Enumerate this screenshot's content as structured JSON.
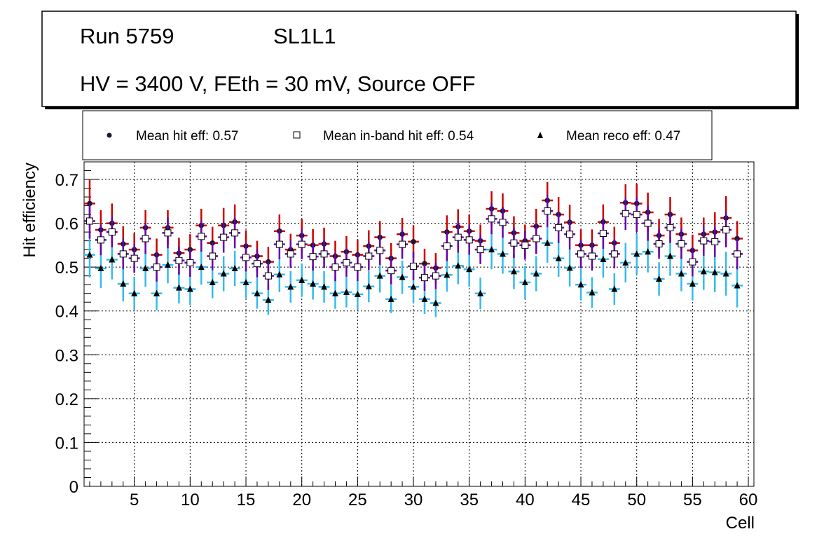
{
  "chart_data": {
    "type": "scatter",
    "title_line1_run": "Run 5759",
    "title_line1_layer": "SL1L1",
    "title_line2": "HV = 3400 V, FEth = 30 mV, Source OFF",
    "xlabel": "Cell",
    "ylabel": "Hit efficiency",
    "xlim": [
      0.5,
      60.5
    ],
    "ylim": [
      0,
      0.74
    ],
    "grid": true,
    "x_ticks": [
      "5",
      "10",
      "15",
      "20",
      "25",
      "30",
      "35",
      "40",
      "45",
      "50",
      "55",
      "60"
    ],
    "y_ticks": [
      "0",
      "0.1",
      "0.2",
      "0.3",
      "0.4",
      "0.5",
      "0.6",
      "0.7"
    ],
    "legend_position": "top",
    "series": [
      {
        "name": "hit",
        "legend": "Mean hit  eff: 0.57",
        "marker": "circle",
        "marker_color": "#1a1a2e",
        "error_color": "#cc0000",
        "x": [
          1,
          2,
          3,
          4,
          5,
          6,
          7,
          8,
          9,
          10,
          11,
          12,
          13,
          14,
          15,
          16,
          17,
          18,
          19,
          20,
          21,
          22,
          23,
          24,
          25,
          26,
          27,
          28,
          29,
          30,
          31,
          32,
          33,
          34,
          35,
          36,
          37,
          38,
          39,
          40,
          41,
          42,
          43,
          44,
          45,
          46,
          47,
          48,
          49,
          50,
          51,
          52,
          53,
          54,
          55,
          56,
          57,
          58,
          59
        ],
        "values": [
          0.645,
          0.585,
          0.6,
          0.553,
          0.54,
          0.59,
          0.528,
          0.59,
          0.532,
          0.54,
          0.595,
          0.555,
          0.595,
          0.603,
          0.548,
          0.525,
          0.512,
          0.582,
          0.54,
          0.572,
          0.55,
          0.553,
          0.525,
          0.535,
          0.528,
          0.548,
          0.568,
          0.52,
          0.575,
          0.558,
          0.508,
          0.498,
          0.58,
          0.592,
          0.582,
          0.56,
          0.633,
          0.628,
          0.578,
          0.56,
          0.593,
          0.652,
          0.62,
          0.602,
          0.55,
          0.55,
          0.603,
          0.555,
          0.647,
          0.645,
          0.625,
          0.572,
          0.62,
          0.575,
          0.538,
          0.575,
          0.58,
          0.612,
          0.565
        ],
        "err": [
          0.055,
          0.045,
          0.045,
          0.04,
          0.038,
          0.04,
          0.037,
          0.04,
          0.035,
          0.035,
          0.038,
          0.037,
          0.04,
          0.04,
          0.036,
          0.035,
          0.034,
          0.038,
          0.036,
          0.038,
          0.037,
          0.037,
          0.035,
          0.036,
          0.035,
          0.036,
          0.037,
          0.035,
          0.037,
          0.037,
          0.034,
          0.034,
          0.038,
          0.04,
          0.038,
          0.037,
          0.04,
          0.04,
          0.038,
          0.037,
          0.04,
          0.042,
          0.04,
          0.04,
          0.036,
          0.036,
          0.04,
          0.037,
          0.042,
          0.045,
          0.045,
          0.038,
          0.04,
          0.038,
          0.036,
          0.038,
          0.045,
          0.05,
          0.04
        ]
      },
      {
        "name": "inband",
        "legend": "Mean in-band hit eff: 0.54",
        "marker": "open-square",
        "marker_color": "#000000",
        "marker_fill": "#ffffff",
        "error_color": "#6600aa",
        "x": [
          1,
          2,
          3,
          4,
          5,
          6,
          7,
          8,
          9,
          10,
          11,
          12,
          13,
          14,
          15,
          16,
          17,
          18,
          19,
          20,
          21,
          22,
          23,
          24,
          25,
          26,
          27,
          28,
          29,
          30,
          31,
          32,
          33,
          34,
          35,
          36,
          37,
          38,
          39,
          40,
          41,
          42,
          43,
          44,
          45,
          46,
          47,
          48,
          49,
          50,
          51,
          52,
          53,
          54,
          55,
          56,
          57,
          58,
          59
        ],
        "values": [
          0.605,
          0.562,
          0.58,
          0.53,
          0.52,
          0.565,
          0.5,
          0.578,
          0.515,
          0.51,
          0.57,
          0.525,
          0.568,
          0.578,
          0.522,
          0.508,
          0.48,
          0.552,
          0.53,
          0.552,
          0.524,
          0.53,
          0.5,
          0.51,
          0.5,
          0.525,
          0.538,
          0.492,
          0.552,
          0.502,
          0.476,
          0.48,
          0.548,
          0.568,
          0.562,
          0.54,
          0.61,
          0.602,
          0.555,
          0.55,
          0.565,
          0.628,
          0.59,
          0.575,
          0.53,
          0.525,
          0.577,
          0.53,
          0.622,
          0.62,
          0.6,
          0.553,
          0.59,
          0.553,
          0.512,
          0.56,
          0.558,
          0.585,
          0.53
        ],
        "err": [
          0.04,
          0.035,
          0.035,
          0.035,
          0.033,
          0.035,
          0.033,
          0.035,
          0.032,
          0.032,
          0.035,
          0.032,
          0.035,
          0.035,
          0.032,
          0.032,
          0.032,
          0.034,
          0.032,
          0.034,
          0.032,
          0.032,
          0.032,
          0.032,
          0.032,
          0.032,
          0.033,
          0.032,
          0.033,
          0.032,
          0.03,
          0.03,
          0.034,
          0.035,
          0.034,
          0.033,
          0.035,
          0.035,
          0.034,
          0.033,
          0.035,
          0.037,
          0.035,
          0.035,
          0.033,
          0.033,
          0.035,
          0.033,
          0.037,
          0.04,
          0.04,
          0.034,
          0.035,
          0.034,
          0.033,
          0.034,
          0.035,
          0.04,
          0.035
        ]
      },
      {
        "name": "reco",
        "legend": "Mean reco eff: 0.47",
        "marker": "triangle",
        "marker_color": "#000000",
        "error_color": "#33bbee",
        "x": [
          1,
          2,
          3,
          4,
          5,
          6,
          7,
          8,
          9,
          10,
          11,
          12,
          13,
          14,
          15,
          16,
          17,
          18,
          19,
          20,
          21,
          22,
          23,
          24,
          25,
          26,
          27,
          28,
          29,
          30,
          31,
          32,
          33,
          34,
          35,
          36,
          37,
          38,
          39,
          40,
          41,
          42,
          43,
          44,
          45,
          46,
          47,
          48,
          49,
          50,
          51,
          52,
          53,
          54,
          55,
          56,
          57,
          58,
          59
        ],
        "values": [
          0.528,
          0.497,
          0.517,
          0.462,
          0.44,
          0.497,
          0.44,
          0.505,
          0.453,
          0.45,
          0.5,
          0.465,
          0.485,
          0.497,
          0.465,
          0.44,
          0.425,
          0.483,
          0.455,
          0.47,
          0.462,
          0.455,
          0.44,
          0.443,
          0.438,
          0.456,
          0.48,
          0.427,
          0.477,
          0.455,
          0.427,
          0.418,
          0.482,
          0.503,
          0.495,
          0.44,
          0.54,
          0.53,
          0.49,
          0.465,
          0.485,
          0.555,
          0.52,
          0.498,
          0.46,
          0.442,
          0.518,
          0.45,
          0.51,
          0.53,
          0.535,
          0.473,
          0.525,
          0.485,
          0.462,
          0.49,
          0.488,
          0.485,
          0.458
        ],
        "err": [
          0.052,
          0.045,
          0.045,
          0.04,
          0.038,
          0.042,
          0.038,
          0.042,
          0.036,
          0.036,
          0.04,
          0.036,
          0.04,
          0.04,
          0.036,
          0.035,
          0.034,
          0.04,
          0.036,
          0.038,
          0.036,
          0.036,
          0.035,
          0.035,
          0.035,
          0.036,
          0.038,
          0.032,
          0.038,
          0.036,
          0.034,
          0.032,
          0.038,
          0.042,
          0.04,
          0.036,
          0.045,
          0.045,
          0.04,
          0.038,
          0.04,
          0.045,
          0.042,
          0.042,
          0.036,
          0.035,
          0.042,
          0.036,
          0.045,
          0.047,
          0.047,
          0.038,
          0.045,
          0.04,
          0.038,
          0.042,
          0.045,
          0.05,
          0.05
        ]
      }
    ]
  }
}
